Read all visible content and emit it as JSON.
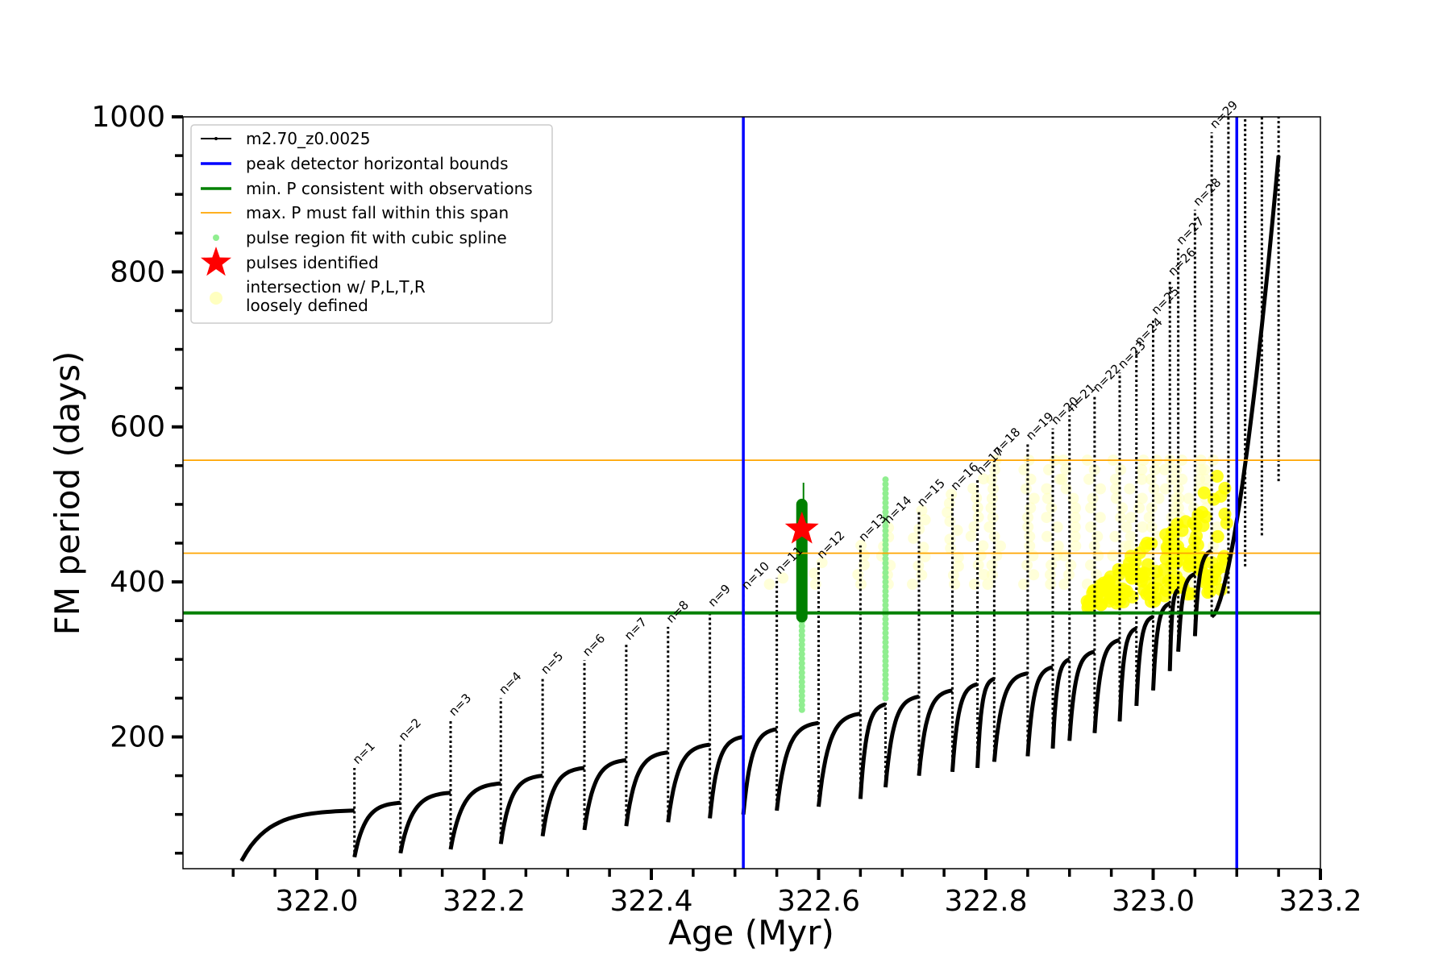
{
  "chart_data": {
    "type": "scatter",
    "xlabel": "Age (Myr)",
    "ylabel": "FM period (days)",
    "xlim": [
      321.84,
      323.2
    ],
    "ylim": [
      30,
      1000
    ],
    "xticks": [
      322.0,
      322.2,
      322.4,
      322.6,
      322.8,
      323.0,
      323.2
    ],
    "xtick_labels": [
      "322.0",
      "322.2",
      "322.4",
      "322.6",
      "322.8",
      "323.0",
      "323.2"
    ],
    "yticks": [
      200,
      400,
      600,
      800,
      1000
    ],
    "ytick_labels": [
      "200",
      "400",
      "600",
      "800",
      "1000"
    ],
    "grid": false,
    "legend_position": "top-left",
    "legend": [
      {
        "label": "m2.70_z0.0025",
        "kind": "line-marker",
        "color": "#000000"
      },
      {
        "label": "peak detector horizontal bounds",
        "kind": "line",
        "color": "#0000ff"
      },
      {
        "label": "min. P consistent with observations",
        "kind": "line",
        "color": "#008000"
      },
      {
        "label": "max. P must fall within this span",
        "kind": "line",
        "color": "#ffa500"
      },
      {
        "label": "pulse region fit with cubic spline",
        "kind": "dot",
        "color": "#90ee90"
      },
      {
        "label": "pulses identified",
        "kind": "star",
        "color": "#ff0000"
      },
      {
        "label": "intersection w/ P,L,T,R",
        "label2": "loosely defined",
        "kind": "circle",
        "color": "#ffffc0"
      }
    ],
    "peak_detector_bounds": [
      322.51,
      323.1
    ],
    "min_period_observed": 360,
    "max_period_span": [
      437,
      557
    ],
    "pulses": [
      {
        "n": "n=1",
        "age": 322.045,
        "trough": 45,
        "recovered": 105,
        "peak": 160
      },
      {
        "n": "n=2",
        "age": 322.1,
        "trough": 50,
        "recovered": 115,
        "peak": 190
      },
      {
        "n": "n=3",
        "age": 322.16,
        "trough": 55,
        "recovered": 128,
        "peak": 222
      },
      {
        "n": "n=4",
        "age": 322.22,
        "trough": 62,
        "recovered": 140,
        "peak": 250
      },
      {
        "n": "n=5",
        "age": 322.27,
        "trough": 72,
        "recovered": 150,
        "peak": 276
      },
      {
        "n": "n=6",
        "age": 322.32,
        "trough": 80,
        "recovered": 160,
        "peak": 299
      },
      {
        "n": "n=7",
        "age": 322.37,
        "trough": 85,
        "recovered": 170,
        "peak": 320
      },
      {
        "n": "n=8",
        "age": 322.42,
        "trough": 90,
        "recovered": 180,
        "peak": 342
      },
      {
        "n": "n=9",
        "age": 322.47,
        "trough": 95,
        "recovered": 190,
        "peak": 363
      },
      {
        "n": "n=10",
        "age": 322.51,
        "trough": 100,
        "recovered": 200,
        "peak": 385
      },
      {
        "n": "n=11",
        "age": 322.55,
        "trough": 105,
        "recovered": 210,
        "peak": 405
      },
      {
        "n": "n=12",
        "age": 322.6,
        "trough": 110,
        "recovered": 218,
        "peak": 425
      },
      {
        "n": "n=13",
        "age": 322.65,
        "trough": 120,
        "recovered": 230,
        "peak": 447
      },
      {
        "n": "n=14",
        "age": 322.68,
        "trough": 135,
        "recovered": 242,
        "peak": 470
      },
      {
        "n": "n=15",
        "age": 322.72,
        "trough": 150,
        "recovered": 252,
        "peak": 492
      },
      {
        "n": "n=16",
        "age": 322.76,
        "trough": 155,
        "recovered": 260,
        "peak": 513
      },
      {
        "n": "n=17",
        "age": 322.79,
        "trough": 160,
        "recovered": 268,
        "peak": 533
      },
      {
        "n": "n=18",
        "age": 322.81,
        "trough": 168,
        "recovered": 275,
        "peak": 558
      },
      {
        "n": "n=19",
        "age": 322.85,
        "trough": 175,
        "recovered": 282,
        "peak": 578
      },
      {
        "n": "n=20",
        "age": 322.88,
        "trough": 185,
        "recovered": 290,
        "peak": 598
      },
      {
        "n": "n=21",
        "age": 322.9,
        "trough": 195,
        "recovered": 300,
        "peak": 615
      },
      {
        "n": "n=22",
        "age": 322.93,
        "trough": 205,
        "recovered": 310,
        "peak": 640
      },
      {
        "n": "n=23",
        "age": 322.96,
        "trough": 220,
        "recovered": 325,
        "peak": 670
      },
      {
        "n": "n=24",
        "age": 322.98,
        "trough": 240,
        "recovered": 340,
        "peak": 700
      },
      {
        "n": "n=25",
        "age": 323.0,
        "trough": 260,
        "recovered": 355,
        "peak": 740
      },
      {
        "n": "n=26",
        "age": 323.02,
        "trough": 285,
        "recovered": 372,
        "peak": 790
      },
      {
        "n": "n=27",
        "age": 323.03,
        "trough": 310,
        "recovered": 390,
        "peak": 830
      },
      {
        "n": "n=28",
        "age": 323.05,
        "trough": 330,
        "recovered": 410,
        "peak": 880
      },
      {
        "n": "n=29",
        "age": 323.07,
        "trough": 355,
        "recovered": 440,
        "peak": 980
      }
    ],
    "extra_spikes": [
      {
        "age": 323.09,
        "low": 385,
        "high": 1000
      },
      {
        "age": 323.11,
        "low": 420,
        "high": 1000
      },
      {
        "age": 323.13,
        "low": 460,
        "high": 1000
      },
      {
        "age": 323.15,
        "low": 530,
        "high": 1000
      }
    ],
    "pulses_identified": [
      {
        "age": 322.58,
        "period": 468
      }
    ],
    "spline_regions": [
      {
        "age": 322.58,
        "low": 235,
        "high": 500
      },
      {
        "age": 322.68,
        "low": 250,
        "high": 535
      }
    ],
    "pulse_fit_region": {
      "age": 322.58,
      "low": 355,
      "high": 500
    }
  }
}
